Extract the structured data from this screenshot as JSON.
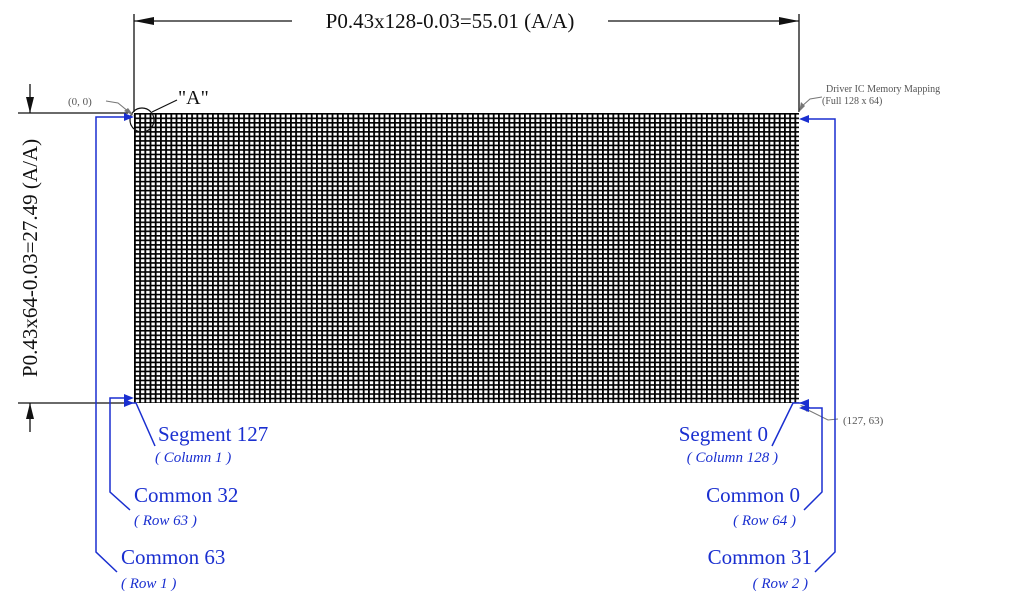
{
  "dimensions": {
    "width_label": "P0.43x128-0.03=55.01 (A/A)",
    "height_label": "P0.43x64-0.03=27.49 (A/A)"
  },
  "markers": {
    "corner_label": "\"A\"",
    "origin_coord": "(0, 0)",
    "end_coord": "(127, 63)"
  },
  "mapping": {
    "line1": "Driver IC Memory Mapping",
    "line2": "(Full 128 x 64)"
  },
  "left_labels": [
    {
      "name": "Segment 127",
      "sub": "( Column 1 )"
    },
    {
      "name": "Common 32",
      "sub": "( Row 63 )"
    },
    {
      "name": "Common 63",
      "sub": "( Row 1 )"
    }
  ],
  "right_labels": [
    {
      "name": "Segment 0",
      "sub": "( Column 128 )"
    },
    {
      "name": "Common 0",
      "sub": "( Row 64 )"
    },
    {
      "name": "Common 31",
      "sub": "( Row 2 )"
    }
  ],
  "matrix": {
    "columns": 128,
    "rows": 64
  },
  "colors": {
    "annotation": "#1a2fd0",
    "dimension": "#111111",
    "grid": "#000000",
    "note": "#555555"
  }
}
